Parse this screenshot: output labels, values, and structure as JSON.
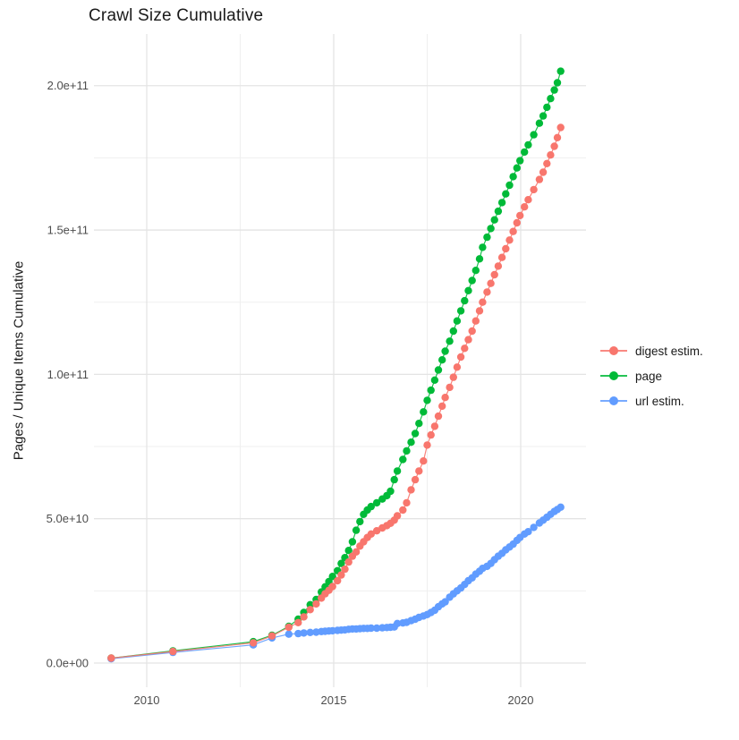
{
  "chart_data": {
    "type": "scatter",
    "title": "Crawl Size Cumulative",
    "xlabel": "",
    "ylabel": "Pages / Unique Items Cumulative",
    "value_unit_multiplier": 1000000000,
    "value_unit_note": "series values are in billions (1e9) of pages / unique items",
    "background": "#ffffff",
    "grid": {
      "major_color": "#e4e4e4",
      "minor_color": "#efefef"
    },
    "axis_text_color": "#4d4d4d",
    "x_axis": {
      "ticks": [
        {
          "value": 2010,
          "label": "2010"
        },
        {
          "value": 2015,
          "label": "2015"
        },
        {
          "value": 2020,
          "label": "2020"
        }
      ],
      "minor_ticks": [
        2012.5,
        2017.5
      ],
      "range": [
        2008.6,
        2021.75
      ]
    },
    "y_axis": {
      "ticks": [
        {
          "value": 0,
          "label": "0.0e+00"
        },
        {
          "value": 50,
          "label": "5.0e+10"
        },
        {
          "value": 100,
          "label": "1.0e+11"
        },
        {
          "value": 150,
          "label": "1.5e+11"
        },
        {
          "value": 200,
          "label": "2.0e+11"
        }
      ],
      "minor_ticks": [
        25,
        75,
        125,
        175
      ],
      "range": [
        -8,
        218
      ]
    },
    "x": [
      2009.05,
      2010.7,
      2012.85,
      2013.35,
      2013.8,
      2014.05,
      2014.2,
      2014.37,
      2014.53,
      2014.67,
      2014.77,
      2014.87,
      2014.97,
      2015.1,
      2015.2,
      2015.3,
      2015.4,
      2015.5,
      2015.6,
      2015.7,
      2015.8,
      2015.9,
      2016.0,
      2016.15,
      2016.3,
      2016.42,
      2016.52,
      2016.62,
      2016.7,
      2016.85,
      2016.95,
      2017.07,
      2017.18,
      2017.28,
      2017.4,
      2017.5,
      2017.6,
      2017.7,
      2017.8,
      2017.9,
      2017.98,
      2018.1,
      2018.2,
      2018.3,
      2018.4,
      2018.5,
      2018.6,
      2018.7,
      2018.8,
      2018.9,
      2018.98,
      2019.1,
      2019.2,
      2019.3,
      2019.4,
      2019.5,
      2019.6,
      2019.7,
      2019.8,
      2019.9,
      2019.98,
      2020.1,
      2020.2,
      2020.35,
      2020.5,
      2020.6,
      2020.7,
      2020.8,
      2020.9,
      2020.98,
      2021.07
    ],
    "series": [
      {
        "key": "page",
        "name": "page",
        "color": "#00BA38",
        "values": [
          1.7,
          4.2,
          7.4,
          9.6,
          12.7,
          15.2,
          17.5,
          20.2,
          22,
          24.6,
          26.4,
          28.2,
          30,
          32,
          34.5,
          36.5,
          39,
          42,
          46,
          49,
          51.5,
          53,
          54.2,
          55.5,
          56.8,
          58,
          59.5,
          63.5,
          66.5,
          70.5,
          73.5,
          76.5,
          79.5,
          83,
          87,
          91,
          94.5,
          98,
          101.5,
          105,
          108,
          111.5,
          115,
          118.5,
          122,
          125.5,
          129,
          132.5,
          136,
          140,
          144,
          147.5,
          150.5,
          153.5,
          156.5,
          159.5,
          162.5,
          165.5,
          168.5,
          171.5,
          174,
          177,
          179.5,
          183,
          187,
          189.5,
          192.5,
          195.5,
          198.5,
          201,
          205
        ]
      },
      {
        "key": "url",
        "name": "url estim.",
        "color": "#619CFF",
        "values": [
          1.5,
          3.7,
          6.3,
          8.7,
          10,
          10.2,
          10.4,
          10.6,
          10.7,
          10.9,
          11,
          11.1,
          11.2,
          11.3,
          11.4,
          11.5,
          11.7,
          11.8,
          11.8,
          11.9,
          12,
          12,
          12.1,
          12.1,
          12.2,
          12.3,
          12.4,
          12.5,
          13.7,
          13.9,
          14.1,
          14.7,
          15.2,
          15.8,
          16.3,
          16.8,
          17.5,
          18.3,
          19.5,
          20.5,
          21.2,
          22.8,
          24,
          25,
          26,
          27.2,
          28.5,
          29.5,
          30.8,
          31.8,
          32.8,
          33.5,
          34.5,
          35.8,
          37,
          38,
          39.2,
          40.2,
          41.2,
          42.5,
          43.5,
          44.7,
          45.5,
          47,
          48.5,
          49.5,
          50.5,
          51.5,
          52.5,
          53.2,
          54
        ]
      },
      {
        "key": "digest",
        "name": "digest estim.",
        "color": "#F8766D",
        "values": [
          1.7,
          4,
          7,
          9.4,
          12.4,
          14,
          16,
          18.5,
          20.5,
          22.5,
          24,
          25.2,
          26.5,
          28.5,
          30.5,
          32.5,
          35,
          37,
          38.5,
          40.5,
          42,
          43.5,
          44.7,
          45.8,
          46.8,
          47.6,
          48.4,
          49.5,
          51,
          53,
          55.5,
          60,
          63.5,
          66.5,
          70,
          75.5,
          79,
          82,
          85.5,
          89,
          92,
          95.5,
          99,
          102.5,
          106,
          109,
          112,
          115,
          118.5,
          122,
          125,
          128.5,
          131.5,
          134.5,
          137.5,
          140.5,
          143.5,
          146.5,
          149.5,
          152.5,
          155,
          158,
          160.5,
          164,
          167.5,
          170,
          173,
          176,
          179,
          182,
          185.5
        ]
      }
    ],
    "draw_order": [
      "page",
      "url",
      "digest"
    ],
    "legend": {
      "position": "right",
      "items": [
        {
          "key": "digest",
          "label": "digest estim.",
          "color": "#F8766D"
        },
        {
          "key": "page",
          "label": "page",
          "color": "#00BA38"
        },
        {
          "key": "url",
          "label": "url estim.",
          "color": "#619CFF"
        }
      ]
    }
  }
}
